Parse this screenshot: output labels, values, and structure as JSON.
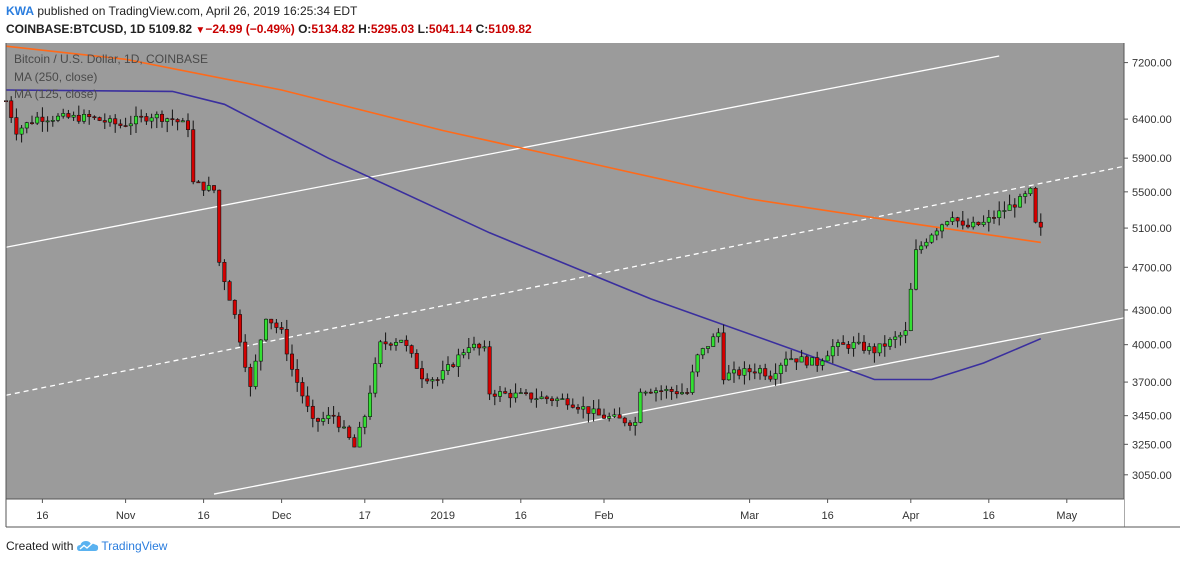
{
  "header": {
    "author": "KWA",
    "published": "published on TradingView.com, April 26, 2019 16:25:34 EDT",
    "symbol": "COINBASE:BTCUSD, 1D",
    "last": "5109.82",
    "change_arrow": "▼",
    "change": "−24.99 (−0.49%)",
    "o_label": "O:",
    "o_value": "5134.82",
    "h_label": "H:",
    "h_value": "5295.03",
    "l_label": "L:",
    "l_value": "5041.14",
    "c_label": "C:",
    "c_value": "5109.82"
  },
  "legend": {
    "title": "Bitcoin / U.S. Dollar, 1D, COINBASE",
    "ma1": "MA (250, close)",
    "ma2": "MA (125, close)"
  },
  "footer": {
    "created_with": "Created with",
    "brand": "TradingView",
    "logo_icon": "tradingview-cloud-icon"
  },
  "colors": {
    "plot_bg": "#9b9b9b",
    "up": "#33e033",
    "down": "#d40000",
    "ma250": "#ff6a1a",
    "ma125": "#3a2f9e",
    "trend": "#ffffff"
  },
  "chart_data": {
    "type": "candlestick",
    "title": "Bitcoin / U.S. Dollar, 1D, COINBASE",
    "y_scale": "log",
    "ylim": [
      2900,
      7500
    ],
    "y_ticks": [
      3050,
      3250,
      3450,
      3700,
      4000,
      4300,
      4700,
      5100,
      5500,
      5900,
      6400,
      7200
    ],
    "y_tick_labels": [
      "3050.00",
      "3250.00",
      "3450.00",
      "3700.00",
      "4000.00",
      "4300.00",
      "4700.00",
      "5100.00",
      "5500.00",
      "5900.00",
      "6400.00",
      "7200.00"
    ],
    "x_range": [
      "2018-10-09",
      "2019-05-12"
    ],
    "x_ticks": [
      {
        "date": "2018-10-16",
        "label": "16"
      },
      {
        "date": "2018-11-01",
        "label": "Nov"
      },
      {
        "date": "2018-11-16",
        "label": "16"
      },
      {
        "date": "2018-12-01",
        "label": "Dec"
      },
      {
        "date": "2018-12-17",
        "label": "17"
      },
      {
        "date": "2019-01-01",
        "label": "2019"
      },
      {
        "date": "2019-01-16",
        "label": "16"
      },
      {
        "date": "2019-02-01",
        "label": "Feb"
      },
      {
        "date": "2019-03-01",
        "label": "Mar"
      },
      {
        "date": "2019-03-16",
        "label": "16"
      },
      {
        "date": "2019-04-01",
        "label": "Apr"
      },
      {
        "date": "2019-04-16",
        "label": "16"
      },
      {
        "date": "2019-05-01",
        "label": "May"
      }
    ],
    "last_price": 5109.82,
    "anchors": [
      [
        "2018-10-09",
        6650
      ],
      [
        "2018-10-11",
        6250
      ],
      [
        "2018-10-15",
        6420
      ],
      [
        "2018-10-25",
        6420
      ],
      [
        "2018-10-31",
        6320
      ],
      [
        "2018-11-06",
        6450
      ],
      [
        "2018-11-10",
        6400
      ],
      [
        "2018-11-13",
        6300
      ],
      [
        "2018-11-14",
        5600
      ],
      [
        "2018-11-18",
        5520
      ],
      [
        "2018-11-19",
        4750
      ],
      [
        "2018-11-22",
        4250
      ],
      [
        "2018-11-24",
        3850
      ],
      [
        "2018-11-25",
        3650
      ],
      [
        "2018-11-28",
        4250
      ],
      [
        "2018-12-01",
        4100
      ],
      [
        "2018-12-03",
        3800
      ],
      [
        "2018-12-07",
        3400
      ],
      [
        "2018-12-11",
        3450
      ],
      [
        "2018-12-15",
        3230
      ],
      [
        "2018-12-17",
        3450
      ],
      [
        "2018-12-20",
        4000
      ],
      [
        "2018-12-24",
        4050
      ],
      [
        "2018-12-28",
        3750
      ],
      [
        "2018-12-31",
        3720
      ],
      [
        "2019-01-03",
        3850
      ],
      [
        "2019-01-06",
        4000
      ],
      [
        "2019-01-09",
        3950
      ],
      [
        "2019-01-10",
        3620
      ],
      [
        "2019-01-20",
        3580
      ],
      [
        "2019-01-25",
        3560
      ],
      [
        "2019-01-31",
        3450
      ],
      [
        "2019-02-07",
        3400
      ],
      [
        "2019-02-08",
        3650
      ],
      [
        "2019-02-17",
        3620
      ],
      [
        "2019-02-19",
        3900
      ],
      [
        "2019-02-23",
        4100
      ],
      [
        "2019-02-24",
        3750
      ],
      [
        "2019-03-03",
        3800
      ],
      [
        "2019-03-05",
        3750
      ],
      [
        "2019-03-08",
        3900
      ],
      [
        "2019-03-14",
        3850
      ],
      [
        "2019-03-17",
        3980
      ],
      [
        "2019-03-21",
        4000
      ],
      [
        "2019-03-25",
        3950
      ],
      [
        "2019-03-31",
        4100
      ],
      [
        "2019-04-02",
        4850
      ],
      [
        "2019-04-05",
        5050
      ],
      [
        "2019-04-09",
        5250
      ],
      [
        "2019-04-11",
        5100
      ],
      [
        "2019-04-15",
        5150
      ],
      [
        "2019-04-19",
        5300
      ],
      [
        "2019-04-22",
        5400
      ],
      [
        "2019-04-24",
        5500
      ],
      [
        "2019-04-25",
        5135
      ],
      [
        "2019-04-26",
        5109.82
      ]
    ],
    "ma250": [
      [
        "2018-10-09",
        7450
      ],
      [
        "2018-11-01",
        7250
      ],
      [
        "2018-12-01",
        6800
      ],
      [
        "2019-01-01",
        6250
      ],
      [
        "2019-02-01",
        5800
      ],
      [
        "2019-03-01",
        5420
      ],
      [
        "2019-04-01",
        5150
      ],
      [
        "2019-04-26",
        4950
      ]
    ],
    "ma125": [
      [
        "2018-10-09",
        6800
      ],
      [
        "2018-11-10",
        6780
      ],
      [
        "2018-11-20",
        6600
      ],
      [
        "2018-12-10",
        5900
      ],
      [
        "2019-01-10",
        5050
      ],
      [
        "2019-02-10",
        4400
      ],
      [
        "2019-03-10",
        3950
      ],
      [
        "2019-03-25",
        3720
      ],
      [
        "2019-04-05",
        3720
      ],
      [
        "2019-04-15",
        3850
      ],
      [
        "2019-04-26",
        4050
      ]
    ],
    "trendlines": [
      {
        "style": "solid",
        "from": [
          "2018-10-09",
          4900
        ],
        "to": [
          "2019-04-18",
          7300
        ]
      },
      {
        "style": "dashed",
        "from": [
          "2018-10-09",
          3600
        ],
        "to": [
          "2019-05-12",
          5800
        ]
      },
      {
        "style": "solid",
        "from": [
          "2018-11-18",
          2930
        ],
        "to": [
          "2019-05-12",
          4230
        ]
      }
    ]
  }
}
